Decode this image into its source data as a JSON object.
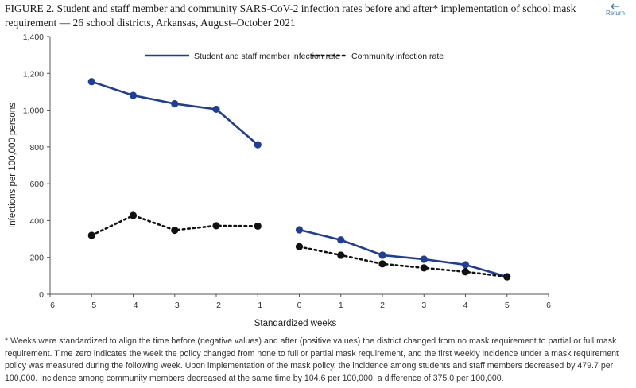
{
  "figure": {
    "title": "FIGURE 2. Student and staff member and community SARS-CoV-2 infection rates before and after* implementation of school mask requirement — 26 school districts, Arkansas, August–October 2021",
    "return_label": "Return",
    "footnote": "* Weeks were standardized to align the time before (negative values) and after (positive values) the district changed from no mask requirement to partial or full mask requirement. Time zero indicates the week the policy changed from none to full or partial mask requirement, and the first weekly incidence under a mask requirement policy was measured during the following week. Upon implementation of the mask policy, the incidence among students and staff members decreased by 479.7 per 100,000. Incidence among community members decreased at the same time by 104.6 per 100,000, a difference of 375.0 per 100,000."
  },
  "colors": {
    "student_series": "#1f3d99",
    "community_series": "#111111",
    "axis": "#555555",
    "return_link": "#3a7bb8"
  },
  "chart_data": {
    "type": "line",
    "title": "",
    "xlabel": "Standardized weeks",
    "ylabel": "Infections per 100,000 persons",
    "xlim": [
      -6,
      6
    ],
    "ylim": [
      0,
      1400
    ],
    "xticks": [
      -6,
      -5,
      -4,
      -3,
      -2,
      -1,
      0,
      1,
      2,
      3,
      4,
      5,
      6
    ],
    "yticks": [
      0,
      200,
      400,
      600,
      800,
      1000,
      1200,
      1400
    ],
    "xtick_labels": [
      "−6",
      "−5",
      "−4",
      "−3",
      "−2",
      "−1",
      "0",
      "1",
      "2",
      "3",
      "4",
      "5",
      "6"
    ],
    "ytick_labels": [
      "0",
      "200",
      "400",
      "600",
      "800",
      "1,000",
      "1,200",
      "1,400"
    ],
    "grid": false,
    "legend_position": "top",
    "series": [
      {
        "name": "Student and staff member infection rate",
        "style": "solid",
        "color": "#1f3d99",
        "segments": [
          {
            "x": [
              -5,
              -4,
              -3,
              -2,
              -1
            ],
            "y": [
              1155,
              1080,
              1035,
              1005,
              812
            ]
          },
          {
            "x": [
              0,
              1,
              2,
              3,
              4,
              5
            ],
            "y": [
              350,
              295,
              212,
              190,
              160,
              95
            ]
          }
        ]
      },
      {
        "name": "Community infection rate",
        "style": "dotted",
        "color": "#111111",
        "segments": [
          {
            "x": [
              -5,
              -4,
              -3,
              -2,
              -1
            ],
            "y": [
              320,
              428,
              348,
              372,
              370
            ]
          },
          {
            "x": [
              0,
              1,
              2,
              3,
              4,
              5
            ],
            "y": [
              258,
              212,
              165,
              143,
              122,
              95
            ]
          }
        ]
      }
    ]
  }
}
